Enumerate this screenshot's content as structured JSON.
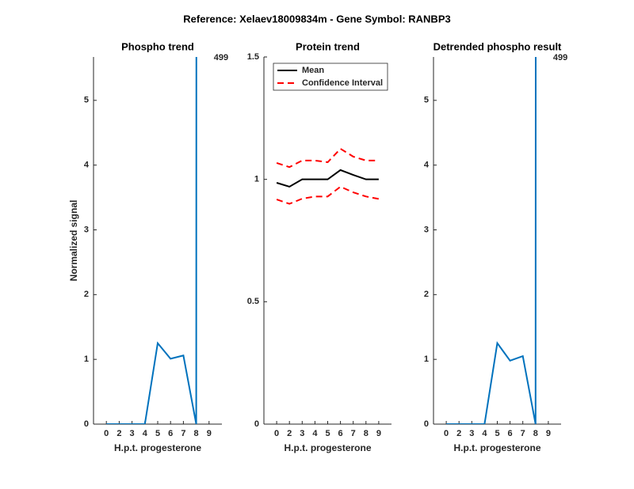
{
  "title": "Reference:  Xelaev18009834m - Gene Symbol:  RANBP3",
  "chart_data": [
    {
      "type": "line",
      "title": "Phospho trend",
      "xlabel": "H.p.t. progesterone",
      "ylabel": "Normalized signal",
      "categories": [
        "0",
        "2",
        "3",
        "4",
        "5",
        "6",
        "7",
        "8",
        "9"
      ],
      "series": [
        {
          "color": "#0072bd",
          "values": [
            0,
            0,
            0,
            0,
            1.25,
            1.01,
            1.06,
            0,
            499
          ],
          "value_labels": [
            null,
            null,
            null,
            null,
            null,
            null,
            null,
            null,
            "499"
          ]
        }
      ],
      "ylim": [
        0,
        5.67
      ],
      "yticks": [
        0,
        1,
        2,
        3,
        4,
        5
      ]
    },
    {
      "type": "line",
      "title": "Protein trend",
      "xlabel": "H.p.t. progesterone",
      "categories": [
        "0",
        "2",
        "3",
        "4",
        "5",
        "6",
        "7",
        "8",
        "9"
      ],
      "series": [
        {
          "name": "Mean",
          "color": "#000000",
          "values": [
            0.986,
            0.97,
            1.0,
            1.0,
            1.0,
            1.038,
            1.018,
            1.0,
            1.0
          ]
        },
        {
          "name": "Confidence Interval",
          "color": "#ff0000",
          "dashed": true,
          "values": [
            1.067,
            1.05,
            1.077,
            1.077,
            1.07,
            1.125,
            1.093,
            1.077,
            1.077
          ]
        },
        {
          "color": "#ff0000",
          "dashed": true,
          "values": [
            0.918,
            0.9,
            0.921,
            0.93,
            0.93,
            0.97,
            0.947,
            0.93,
            0.92
          ]
        }
      ],
      "ylim": [
        0,
        1.5
      ],
      "yticks": [
        0,
        0.5,
        1,
        1.5
      ],
      "legend": "top-left"
    },
    {
      "type": "line",
      "title": "Detrended phospho result",
      "xlabel": "H.p.t. progesterone",
      "categories": [
        "0",
        "2",
        "3",
        "4",
        "5",
        "6",
        "7",
        "8",
        "9"
      ],
      "series": [
        {
          "color": "#0072bd",
          "values": [
            0,
            0,
            0,
            0,
            1.25,
            0.98,
            1.05,
            0,
            499
          ],
          "value_labels": [
            null,
            null,
            null,
            null,
            null,
            null,
            null,
            null,
            "499"
          ]
        }
      ],
      "ylim": [
        0,
        5.67
      ],
      "yticks": [
        0,
        1,
        2,
        3,
        4,
        5
      ]
    }
  ]
}
